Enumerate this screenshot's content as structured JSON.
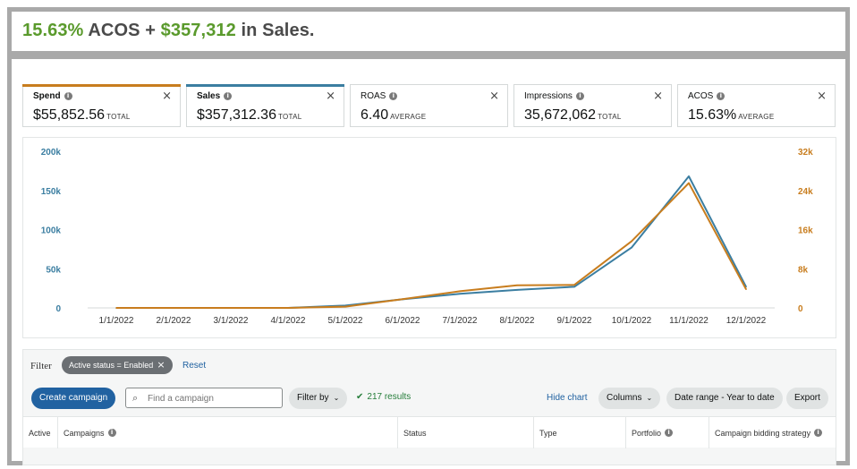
{
  "headline": {
    "pct": "15.63%",
    "mid": " ACOS + ",
    "amount": "$357,312",
    "tail": " in Sales."
  },
  "metrics": [
    {
      "name": "Spend",
      "value": "$55,852.56",
      "sub": "TOTAL",
      "bar_color": "#c87d1e",
      "selected": true
    },
    {
      "name": "Sales",
      "value": "$357,312.36",
      "sub": "TOTAL",
      "bar_color": "#3b7ea1",
      "selected": true
    },
    {
      "name": "ROAS",
      "value": "6.40",
      "sub": "AVERAGE",
      "selected": false
    },
    {
      "name": "Impressions",
      "value": "35,672,062",
      "sub": "TOTAL",
      "selected": false
    },
    {
      "name": "ACOS",
      "value": "15.63%",
      "sub": "AVERAGE",
      "selected": false
    }
  ],
  "close_glyph": "×",
  "info_glyph": "i",
  "chart_data": {
    "type": "line",
    "x": [
      "1/1/2022",
      "2/1/2022",
      "3/1/2022",
      "4/1/2022",
      "5/1/2022",
      "6/1/2022",
      "7/1/2022",
      "8/1/2022",
      "9/1/2022",
      "10/1/2022",
      "11/1/2022",
      "12/1/2022"
    ],
    "series": [
      {
        "name": "Sales",
        "axis": "left",
        "color": "#3b7ea1",
        "values": [
          0,
          0,
          0,
          0,
          3000,
          11000,
          18000,
          23000,
          27000,
          77000,
          168000,
          27000
        ]
      },
      {
        "name": "Spend",
        "axis": "right",
        "color": "#c87d1e",
        "values": [
          0,
          0,
          0,
          0,
          250,
          1800,
          3400,
          4600,
          4700,
          13600,
          25500,
          3800
        ]
      }
    ],
    "left_axis": {
      "ticks": [
        0,
        50000,
        100000,
        150000,
        200000
      ],
      "labels": [
        "0",
        "50k",
        "100k",
        "150k",
        "200k"
      ],
      "ylim": [
        0,
        200000
      ],
      "color": "#3b7ea1"
    },
    "right_axis": {
      "ticks": [
        0,
        8000,
        16000,
        24000,
        32000
      ],
      "labels": [
        "0",
        "8k",
        "16k",
        "24k",
        "32k"
      ],
      "ylim": [
        0,
        32000
      ],
      "color": "#c87d1e"
    },
    "grid": false
  },
  "filter": {
    "label": "Filter",
    "chip": "Active status = Enabled",
    "chip_close": "×",
    "reset": "Reset"
  },
  "toolbar": {
    "create": "Create campaign",
    "search_placeholder": "Find a campaign",
    "filter_by": "Filter by",
    "results_check": "✔",
    "results": "217 results",
    "hide_chart": "Hide chart",
    "columns": "Columns",
    "date_range": "Date range - Year to date",
    "export": "Export",
    "chevron": "⌄"
  },
  "table": {
    "headers": [
      {
        "label": "Active",
        "info": false
      },
      {
        "label": "Campaigns",
        "info": true
      },
      {
        "label": "Status",
        "info": false
      },
      {
        "label": "Type",
        "info": false
      },
      {
        "label": "Portfolio",
        "info": true
      },
      {
        "label": "Campaign bidding strategy",
        "info": true
      }
    ]
  }
}
